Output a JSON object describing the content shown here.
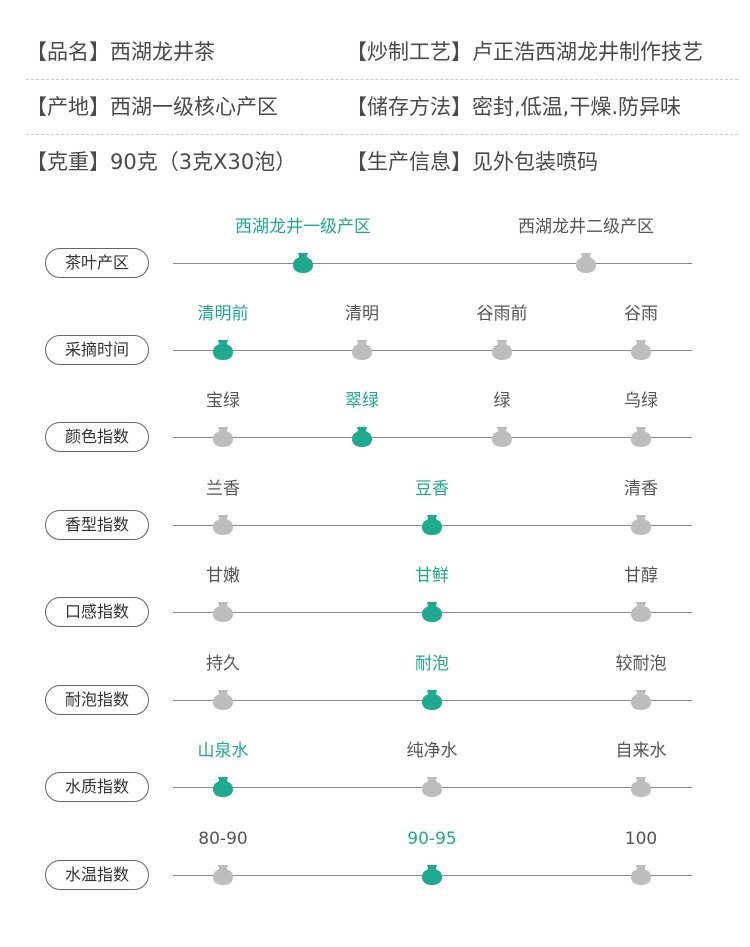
{
  "colors": {
    "accent": "#1eaa8f",
    "inactive": "#bdbdbd",
    "text": "#4a4a4a"
  },
  "info": {
    "rows": [
      {
        "left": "【品名】西湖龙井茶",
        "right": "【炒制工艺】卢正浩西湖龙井制作技艺"
      },
      {
        "left": "【产地】西湖一级核心产区",
        "right": "【储存方法】密封,低温,干燥.防异味"
      },
      {
        "left": "【克重】90克（3克X30泡）",
        "right": "【生产信息】见外包装喷码"
      }
    ]
  },
  "scales": [
    {
      "label": "茶叶产区",
      "options": [
        {
          "text": "西湖龙井一级产区",
          "selected": true
        },
        {
          "text": "西湖龙井二级产区",
          "selected": false
        }
      ]
    },
    {
      "label": "采摘时间",
      "options": [
        {
          "text": "清明前",
          "selected": true
        },
        {
          "text": "清明",
          "selected": false
        },
        {
          "text": "谷雨前",
          "selected": false
        },
        {
          "text": "谷雨",
          "selected": false
        }
      ]
    },
    {
      "label": "颜色指数",
      "options": [
        {
          "text": "宝绿",
          "selected": false
        },
        {
          "text": "翠绿",
          "selected": true
        },
        {
          "text": "绿",
          "selected": false
        },
        {
          "text": "乌绿",
          "selected": false
        }
      ]
    },
    {
      "label": "香型指数",
      "options": [
        {
          "text": "兰香",
          "selected": false
        },
        {
          "text": "豆香",
          "selected": true
        },
        {
          "text": "清香",
          "selected": false
        }
      ]
    },
    {
      "label": "口感指数",
      "options": [
        {
          "text": "甘嫩",
          "selected": false
        },
        {
          "text": "甘鲜",
          "selected": true
        },
        {
          "text": "甘醇",
          "selected": false
        }
      ]
    },
    {
      "label": "耐泡指数",
      "options": [
        {
          "text": "持久",
          "selected": false
        },
        {
          "text": "耐泡",
          "selected": true
        },
        {
          "text": "较耐泡",
          "selected": false
        }
      ]
    },
    {
      "label": "水质指数",
      "options": [
        {
          "text": "山泉水",
          "selected": true
        },
        {
          "text": "纯净水",
          "selected": false
        },
        {
          "text": "自来水",
          "selected": false
        }
      ]
    },
    {
      "label": "水温指数",
      "options": [
        {
          "text": "80-90",
          "selected": false
        },
        {
          "text": "90-95",
          "selected": true
        },
        {
          "text": "100",
          "selected": false
        }
      ]
    }
  ]
}
